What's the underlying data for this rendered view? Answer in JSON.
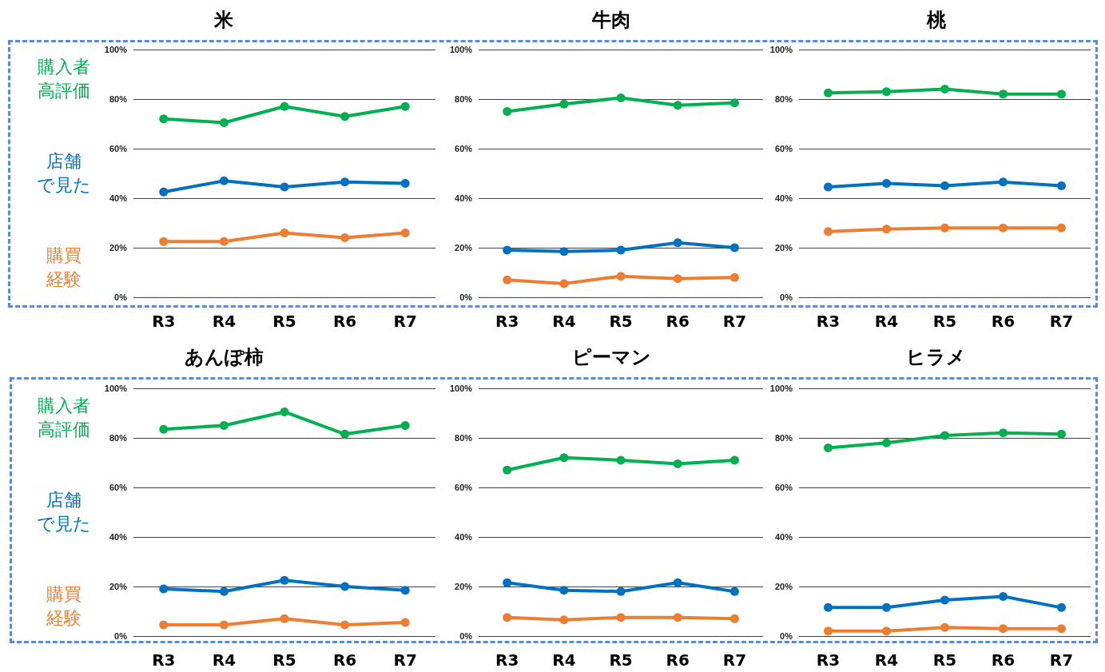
{
  "chart_data": [
    {
      "type": "line",
      "title": "米",
      "categories": [
        "R3",
        "R4",
        "R5",
        "R6",
        "R7"
      ],
      "legend": "left",
      "grid": "y",
      "marker": "circle",
      "line_style": "solid",
      "ylim": [
        0,
        100
      ],
      "yticks": [
        {
          "value": 0,
          "label": "0%"
        },
        {
          "value": 20,
          "label": "20%"
        },
        {
          "value": 40,
          "label": "40%"
        },
        {
          "value": 60,
          "label": "60%"
        },
        {
          "value": 80,
          "label": "80%"
        },
        {
          "value": 100,
          "label": "100%"
        }
      ],
      "series": [
        {
          "name": "購入者高評価",
          "color": "#00b050",
          "values": [
            72,
            70.5,
            77,
            73,
            77
          ]
        },
        {
          "name": "店舗で見た",
          "color": "#0070c0",
          "values": [
            42.5,
            47,
            44.5,
            46.5,
            46
          ]
        },
        {
          "name": "購買経験",
          "color": "#ed7d31",
          "values": [
            22.5,
            22.5,
            26,
            24,
            26
          ]
        }
      ]
    },
    {
      "type": "line",
      "title": "牛肉",
      "categories": [
        "R3",
        "R4",
        "R5",
        "R6",
        "R7"
      ],
      "grid": "y",
      "marker": "circle",
      "line_style": "solid",
      "ylim": [
        0,
        100
      ],
      "yticks": [
        {
          "value": 0,
          "label": "0%"
        },
        {
          "value": 20,
          "label": "20%"
        },
        {
          "value": 40,
          "label": "40%"
        },
        {
          "value": 60,
          "label": "60%"
        },
        {
          "value": 80,
          "label": "80%"
        },
        {
          "value": 100,
          "label": "100%"
        }
      ],
      "series": [
        {
          "color": "#00b050",
          "values": [
            75,
            78,
            80.5,
            77.5,
            78.5
          ]
        },
        {
          "color": "#0070c0",
          "values": [
            19,
            18.5,
            19,
            22,
            20
          ]
        },
        {
          "color": "#ed7d31",
          "values": [
            7,
            5.5,
            8.5,
            7.5,
            8
          ]
        }
      ]
    },
    {
      "type": "line",
      "title": "桃",
      "categories": [
        "R3",
        "R4",
        "R5",
        "R6",
        "R7"
      ],
      "grid": "y",
      "marker": "circle",
      "line_style": "solid",
      "ylim": [
        0,
        100
      ],
      "yticks": [
        {
          "value": 0,
          "label": "0%"
        },
        {
          "value": 20,
          "label": "20%"
        },
        {
          "value": 40,
          "label": "40%"
        },
        {
          "value": 60,
          "label": "60%"
        },
        {
          "value": 80,
          "label": "80%"
        },
        {
          "value": 100,
          "label": "100%"
        }
      ],
      "series": [
        {
          "color": "#00b050",
          "values": [
            82.5,
            83,
            84,
            82,
            82
          ]
        },
        {
          "color": "#0070c0",
          "values": [
            44.5,
            46,
            45,
            46.5,
            45
          ]
        },
        {
          "color": "#ed7d31",
          "values": [
            26.5,
            27.5,
            28,
            28,
            28
          ]
        }
      ]
    },
    {
      "type": "line",
      "title": "あんぽ柿",
      "categories": [
        "R3",
        "R4",
        "R5",
        "R6",
        "R7"
      ],
      "legend": "left",
      "grid": "y",
      "marker": "circle",
      "line_style": "solid",
      "ylim": [
        0,
        100
      ],
      "yticks": [
        {
          "value": 0,
          "label": "0%"
        },
        {
          "value": 20,
          "label": "20%"
        },
        {
          "value": 40,
          "label": "40%"
        },
        {
          "value": 60,
          "label": "60%"
        },
        {
          "value": 80,
          "label": "80%"
        },
        {
          "value": 100,
          "label": "100%"
        }
      ],
      "series": [
        {
          "name": "購入者高評価",
          "color": "#00b050",
          "values": [
            83.5,
            85,
            90.5,
            81.5,
            85
          ]
        },
        {
          "name": "店舗で見た",
          "color": "#0070c0",
          "values": [
            19,
            18,
            22.5,
            20,
            18.5
          ]
        },
        {
          "name": "購買経験",
          "color": "#ed7d31",
          "values": [
            4.5,
            4.5,
            7,
            4.5,
            5.5
          ]
        }
      ]
    },
    {
      "type": "line",
      "title": "ピーマン",
      "categories": [
        "R3",
        "R4",
        "R5",
        "R6",
        "R7"
      ],
      "grid": "y",
      "marker": "circle",
      "line_style": "solid",
      "ylim": [
        0,
        100
      ],
      "yticks": [
        {
          "value": 0,
          "label": "0%"
        },
        {
          "value": 20,
          "label": "20%"
        },
        {
          "value": 40,
          "label": "40%"
        },
        {
          "value": 60,
          "label": "60%"
        },
        {
          "value": 80,
          "label": "80%"
        },
        {
          "value": 100,
          "label": "100%"
        }
      ],
      "series": [
        {
          "color": "#00b050",
          "values": [
            67,
            72,
            71,
            69.5,
            71
          ]
        },
        {
          "color": "#0070c0",
          "values": [
            21.5,
            18.5,
            18,
            21.5,
            18
          ]
        },
        {
          "color": "#ed7d31",
          "values": [
            7.5,
            6.5,
            7.5,
            7.5,
            7
          ]
        }
      ]
    },
    {
      "type": "line",
      "title": "ヒラメ",
      "categories": [
        "R3",
        "R4",
        "R5",
        "R6",
        "R7"
      ],
      "grid": "y",
      "marker": "circle",
      "line_style": "solid",
      "ylim": [
        0,
        100
      ],
      "yticks": [
        {
          "value": 0,
          "label": "0%"
        },
        {
          "value": 20,
          "label": "20%"
        },
        {
          "value": 40,
          "label": "40%"
        },
        {
          "value": 60,
          "label": "60%"
        },
        {
          "value": 80,
          "label": "80%"
        },
        {
          "value": 100,
          "label": "100%"
        }
      ],
      "series": [
        {
          "color": "#00b050",
          "values": [
            76,
            78,
            81,
            82,
            81.5
          ]
        },
        {
          "color": "#0070c0",
          "values": [
            11.5,
            11.5,
            14.5,
            16,
            11.5
          ]
        },
        {
          "color": "#ed7d31",
          "values": [
            2,
            2,
            3.5,
            3,
            3
          ]
        }
      ]
    }
  ]
}
